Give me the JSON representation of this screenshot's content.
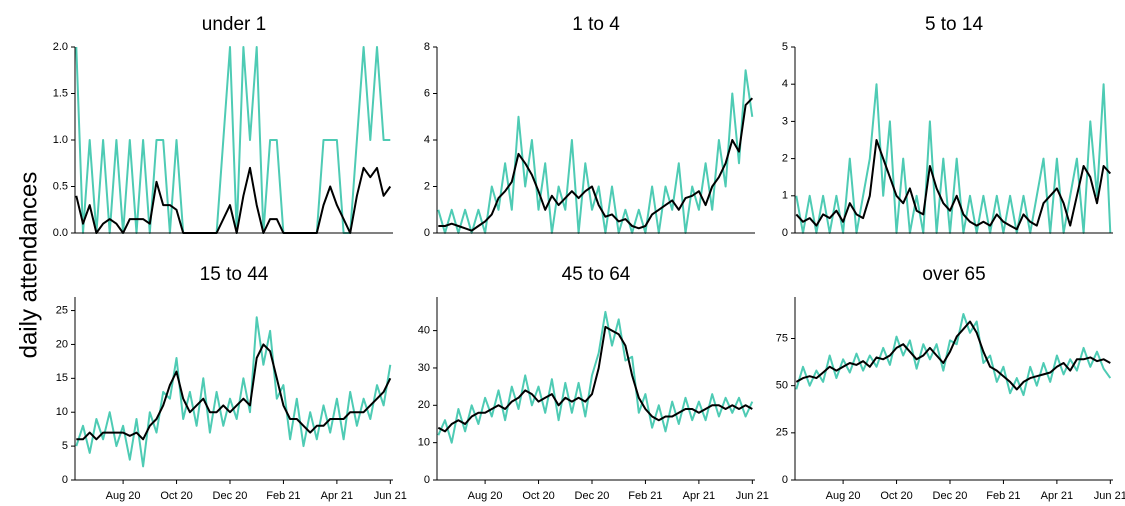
{
  "ylabel": "daily attendances",
  "chart_data": [
    {
      "type": "line",
      "title": "under 1",
      "x": [
        6.25,
        6.5,
        6.75,
        7,
        7.25,
        7.5,
        7.75,
        8,
        8.25,
        8.5,
        8.75,
        9,
        9.25,
        9.5,
        9.75,
        10,
        10.25,
        10.5,
        10.75,
        11,
        11.25,
        11.5,
        11.75,
        12,
        12.25,
        12.5,
        12.75,
        13,
        13.25,
        13.5,
        13.75,
        14,
        14.25,
        14.5,
        14.75,
        15,
        15.25,
        15.5,
        15.75,
        16,
        16.25,
        16.5,
        16.75,
        17,
        17.25,
        17.5,
        17.75,
        18
      ],
      "series": [
        {
          "color": "#4ecbb4",
          "values": [
            2,
            0,
            1,
            0,
            1,
            0,
            1,
            0,
            1,
            0,
            1,
            0,
            1,
            1,
            0,
            1,
            0,
            0,
            0,
            0,
            0,
            0,
            1,
            2,
            0,
            2,
            1,
            2,
            0,
            1,
            1,
            0,
            0,
            0,
            0,
            0,
            0,
            1,
            1,
            1,
            0,
            0,
            1,
            2,
            1,
            2,
            1,
            1
          ]
        },
        {
          "color": "#000000",
          "values": [
            0.4,
            0.1,
            0.3,
            0,
            0.1,
            0.15,
            0.1,
            0,
            0.15,
            0.15,
            0.15,
            0.1,
            0.55,
            0.3,
            0.3,
            0.25,
            0,
            0,
            0,
            0,
            0,
            0,
            0.15,
            0.3,
            0,
            0.4,
            0.7,
            0.3,
            0,
            0.15,
            0.15,
            0,
            0,
            0,
            0,
            0,
            0,
            0.3,
            0.5,
            0.3,
            0.15,
            0,
            0.4,
            0.7,
            0.6,
            0.7,
            0.4,
            0.5
          ]
        }
      ],
      "xlim": [
        6.2,
        18.1
      ],
      "ylim": [
        0,
        2
      ],
      "yticks": [
        {
          "value": 0,
          "label": "0.0"
        },
        0.5,
        {
          "value": 1,
          "label": "1.0"
        },
        1.5,
        {
          "value": 2,
          "label": "2.0"
        }
      ]
    },
    {
      "type": "line",
      "title": "1 to 4",
      "x": [
        6.25,
        6.5,
        6.75,
        7,
        7.25,
        7.5,
        7.75,
        8,
        8.25,
        8.5,
        8.75,
        9,
        9.25,
        9.5,
        9.75,
        10,
        10.25,
        10.5,
        10.75,
        11,
        11.25,
        11.5,
        11.75,
        12,
        12.25,
        12.5,
        12.75,
        13,
        13.25,
        13.5,
        13.75,
        14,
        14.25,
        14.5,
        14.75,
        15,
        15.25,
        15.5,
        15.75,
        16,
        16.25,
        16.5,
        16.75,
        17,
        17.25,
        17.5,
        17.75,
        18
      ],
      "series": [
        {
          "color": "#4ecbb4",
          "values": [
            1,
            0,
            1,
            0,
            1,
            0,
            1,
            0,
            2,
            1,
            3,
            1,
            5,
            2,
            4,
            1,
            3,
            0,
            2,
            1,
            4,
            0,
            3,
            1,
            2,
            0,
            2,
            0,
            1,
            0,
            1,
            0,
            2,
            0,
            2,
            1,
            3,
            0,
            2,
            1,
            3,
            1,
            4,
            2,
            6,
            3,
            7,
            5
          ]
        },
        {
          "color": "#000000",
          "values": [
            0.3,
            0.3,
            0.4,
            0.3,
            0.2,
            0.1,
            0.3,
            0.5,
            0.8,
            1.5,
            1.8,
            2.2,
            3.4,
            3,
            2.5,
            1.8,
            1,
            1.6,
            1.2,
            1.5,
            1.8,
            1.5,
            1.8,
            2,
            1.2,
            0.7,
            0.8,
            0.5,
            0.6,
            0.3,
            0.2,
            0.3,
            0.8,
            1,
            1.2,
            1.4,
            1,
            1.5,
            1.6,
            1.8,
            1.2,
            2,
            2.4,
            3,
            4,
            3.5,
            5.5,
            5.8
          ]
        }
      ],
      "xlim": [
        6.2,
        18.1
      ],
      "ylim": [
        0,
        8
      ],
      "yticks": [
        0,
        2,
        4,
        6,
        8
      ]
    },
    {
      "type": "line",
      "title": "5 to 14",
      "x": [
        6.25,
        6.5,
        6.75,
        7,
        7.25,
        7.5,
        7.75,
        8,
        8.25,
        8.5,
        8.75,
        9,
        9.25,
        9.5,
        9.75,
        10,
        10.25,
        10.5,
        10.75,
        11,
        11.25,
        11.5,
        11.75,
        12,
        12.25,
        12.5,
        12.75,
        13,
        13.25,
        13.5,
        13.75,
        14,
        14.25,
        14.5,
        14.75,
        15,
        15.25,
        15.5,
        15.75,
        16,
        16.25,
        16.5,
        16.75,
        17,
        17.25,
        17.5,
        17.75,
        18
      ],
      "series": [
        {
          "color": "#4ecbb4",
          "values": [
            1,
            0,
            1,
            0,
            1,
            0,
            1,
            0,
            2,
            0,
            1,
            2,
            4,
            1,
            3,
            0,
            2,
            0,
            1,
            0,
            3,
            0,
            2,
            0,
            2,
            0,
            1,
            0,
            1,
            0,
            1,
            0,
            1,
            0,
            1,
            0,
            1,
            2,
            0,
            2,
            0,
            1,
            2,
            0,
            3,
            1,
            4,
            0
          ]
        },
        {
          "color": "#000000",
          "values": [
            0.5,
            0.3,
            0.4,
            0.2,
            0.5,
            0.4,
            0.6,
            0.3,
            0.8,
            0.5,
            0.4,
            1,
            2.5,
            2,
            1.5,
            1,
            0.8,
            1.2,
            0.6,
            0.5,
            1.8,
            1.2,
            0.8,
            0.6,
            1,
            0.5,
            0.3,
            0.2,
            0.3,
            0.2,
            0.5,
            0.3,
            0.2,
            0.1,
            0.5,
            0.3,
            0.2,
            0.8,
            1,
            1.2,
            0.8,
            0.2,
            1,
            1.8,
            1.5,
            0.8,
            1.8,
            1.6
          ]
        }
      ],
      "xlim": [
        6.2,
        18.1
      ],
      "ylim": [
        0,
        5
      ],
      "yticks": [
        0,
        1,
        2,
        3,
        4,
        5
      ]
    },
    {
      "type": "line",
      "title": "15 to 44",
      "x": [
        6.25,
        6.5,
        6.75,
        7,
        7.25,
        7.5,
        7.75,
        8,
        8.25,
        8.5,
        8.75,
        9,
        9.25,
        9.5,
        9.75,
        10,
        10.25,
        10.5,
        10.75,
        11,
        11.25,
        11.5,
        11.75,
        12,
        12.25,
        12.5,
        12.75,
        13,
        13.25,
        13.5,
        13.75,
        14,
        14.25,
        14.5,
        14.75,
        15,
        15.25,
        15.5,
        15.75,
        16,
        16.25,
        16.5,
        16.75,
        17,
        17.25,
        17.5,
        17.75,
        18
      ],
      "series": [
        {
          "color": "#4ecbb4",
          "values": [
            5,
            8,
            4,
            9,
            6,
            10,
            5,
            8,
            3,
            9,
            2,
            10,
            7,
            13,
            12,
            18,
            9,
            13,
            8,
            15,
            7,
            13,
            8,
            12,
            9,
            15,
            10,
            24,
            17,
            22,
            12,
            14,
            6,
            12,
            5,
            10,
            6,
            11,
            7,
            12,
            6,
            13,
            8,
            12,
            9,
            14,
            11,
            17
          ]
        },
        {
          "color": "#000000",
          "values": [
            6,
            6,
            7,
            6,
            7,
            7,
            7,
            7,
            6.5,
            7,
            6,
            8,
            9,
            11,
            14,
            16,
            12,
            10,
            11,
            12,
            10,
            10,
            11,
            10,
            11,
            12,
            11,
            18,
            20,
            19,
            15,
            11,
            9,
            9,
            8,
            7,
            8,
            8,
            9,
            9,
            9,
            10,
            10,
            10,
            11,
            12,
            13,
            15
          ]
        }
      ],
      "xlim": [
        6.2,
        18.1
      ],
      "ylim": [
        0,
        27
      ],
      "yticks": [
        0,
        5,
        10,
        15,
        20,
        25
      ],
      "xticks": [
        {
          "value": 8,
          "label": "Aug 20"
        },
        {
          "value": 10,
          "label": "Oct 20"
        },
        {
          "value": 12,
          "label": "Dec 20"
        },
        {
          "value": 14,
          "label": "Feb 21"
        },
        {
          "value": 16,
          "label": "Apr 21"
        },
        {
          "value": 18,
          "label": "Jun 21"
        }
      ]
    },
    {
      "type": "line",
      "title": "45 to 64",
      "x": [
        6.25,
        6.5,
        6.75,
        7,
        7.25,
        7.5,
        7.75,
        8,
        8.25,
        8.5,
        8.75,
        9,
        9.25,
        9.5,
        9.75,
        10,
        10.25,
        10.5,
        10.75,
        11,
        11.25,
        11.5,
        11.75,
        12,
        12.25,
        12.5,
        12.75,
        13,
        13.25,
        13.5,
        13.75,
        14,
        14.25,
        14.5,
        14.75,
        15,
        15.25,
        15.5,
        15.75,
        16,
        16.25,
        16.5,
        16.75,
        17,
        17.25,
        17.5,
        17.75,
        18
      ],
      "series": [
        {
          "color": "#4ecbb4",
          "values": [
            12,
            16,
            10,
            19,
            13,
            20,
            15,
            22,
            17,
            24,
            16,
            25,
            19,
            28,
            20,
            25,
            18,
            27,
            16,
            26,
            18,
            26,
            17,
            28,
            34,
            45,
            36,
            43,
            32,
            33,
            18,
            23,
            14,
            20,
            13,
            21,
            15,
            22,
            16,
            21,
            16,
            23,
            17,
            22,
            18,
            22,
            17,
            21
          ]
        },
        {
          "color": "#000000",
          "values": [
            14,
            13,
            15,
            16,
            15,
            17,
            18,
            18,
            19,
            20,
            19,
            21,
            22,
            24,
            23,
            21,
            22,
            23,
            20,
            22,
            21,
            22,
            21,
            23,
            30,
            41,
            40,
            39,
            36,
            28,
            22,
            19,
            17,
            16,
            17,
            17,
            18,
            19,
            19,
            18,
            19,
            20,
            20,
            19,
            20,
            19,
            20,
            19
          ]
        }
      ],
      "xlim": [
        6.2,
        18.1
      ],
      "ylim": [
        0,
        49
      ],
      "yticks": [
        0,
        10,
        20,
        30,
        40
      ],
      "xticks": [
        {
          "value": 8,
          "label": "Aug 20"
        },
        {
          "value": 10,
          "label": "Oct 20"
        },
        {
          "value": 12,
          "label": "Dec 20"
        },
        {
          "value": 14,
          "label": "Feb 21"
        },
        {
          "value": 16,
          "label": "Apr 21"
        },
        {
          "value": 18,
          "label": "Jun 21"
        }
      ]
    },
    {
      "type": "line",
      "title": "over 65",
      "x": [
        6.25,
        6.5,
        6.75,
        7,
        7.25,
        7.5,
        7.75,
        8,
        8.25,
        8.5,
        8.75,
        9,
        9.25,
        9.5,
        9.75,
        10,
        10.25,
        10.5,
        10.75,
        11,
        11.25,
        11.5,
        11.75,
        12,
        12.25,
        12.5,
        12.75,
        13,
        13.25,
        13.5,
        13.75,
        14,
        14.25,
        14.5,
        14.75,
        15,
        15.25,
        15.5,
        15.75,
        16,
        16.25,
        16.5,
        16.75,
        17,
        17.25,
        17.5,
        17.75,
        18
      ],
      "series": [
        {
          "color": "#4ecbb4",
          "values": [
            48,
            60,
            50,
            58,
            52,
            66,
            54,
            64,
            57,
            67,
            58,
            66,
            60,
            70,
            61,
            76,
            66,
            74,
            59,
            72,
            64,
            72,
            58,
            74,
            72,
            88,
            78,
            84,
            62,
            66,
            52,
            60,
            46,
            54,
            45,
            60,
            50,
            62,
            52,
            66,
            56,
            64,
            58,
            70,
            60,
            68,
            59,
            54
          ]
        },
        {
          "color": "#000000",
          "values": [
            52,
            54,
            55,
            54,
            57,
            60,
            58,
            60,
            62,
            61,
            63,
            60,
            65,
            64,
            66,
            70,
            72,
            68,
            64,
            66,
            70,
            66,
            62,
            68,
            76,
            80,
            84,
            78,
            68,
            60,
            58,
            55,
            52,
            48,
            52,
            54,
            55,
            56,
            57,
            60,
            62,
            58,
            64,
            64,
            65,
            63,
            64,
            62
          ]
        }
      ],
      "xlim": [
        6.2,
        18.1
      ],
      "ylim": [
        0,
        97
      ],
      "yticks": [
        0,
        25,
        50,
        75
      ],
      "xticks": [
        {
          "value": 8,
          "label": "Aug 20"
        },
        {
          "value": 10,
          "label": "Oct 20"
        },
        {
          "value": 12,
          "label": "Dec 20"
        },
        {
          "value": 14,
          "label": "Feb 21"
        },
        {
          "value": 16,
          "label": "Apr 21"
        },
        {
          "value": 18,
          "label": "Jun 21"
        }
      ]
    }
  ]
}
